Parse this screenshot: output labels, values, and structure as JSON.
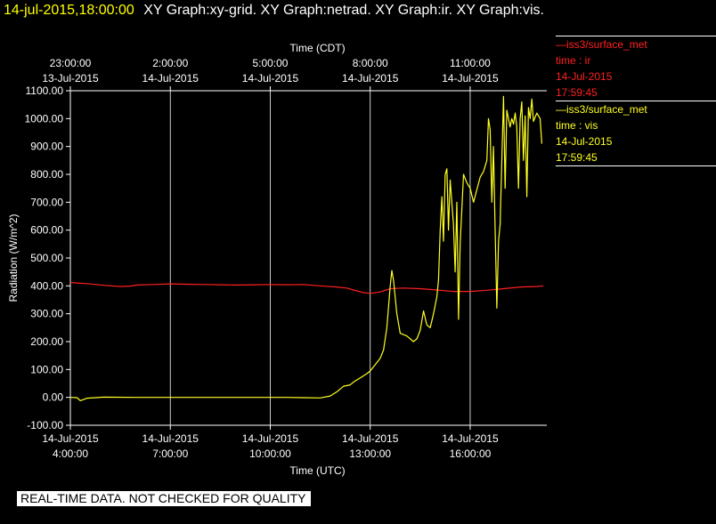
{
  "header": {
    "timestamp": "14-jul-2015,18:00:00",
    "titles": "XY Graph:xy-grid.  XY Graph:netrad.  XY Graph:ir.  XY Graph:vis."
  },
  "disclaimer": "REAL-TIME DATA. NOT CHECKED FOR QUALITY",
  "legend": [
    {
      "series": "iss3/surface_met",
      "var": "time : ir",
      "date": "14-Jul-2015",
      "time": "17:59:45",
      "color": "#ff2020"
    },
    {
      "series": "iss3/surface_met",
      "var": "time : vis",
      "date": "14-Jul-2015",
      "time": "17:59:45",
      "color": "#ffff20"
    }
  ],
  "chart_data": {
    "type": "line",
    "ylabel": "Radiation  (W/m^2)",
    "xlabel_bottom": "Time (UTC)",
    "xlabel_top": "Time (CDT)",
    "ylim": [
      -100,
      1100
    ],
    "xlim_utc_hours": [
      4.0,
      18.3
    ],
    "y_ticks": [
      "-100.00",
      "0.00",
      "100.00",
      "200.00",
      "300.00",
      "400.00",
      "500.00",
      "600.00",
      "700.00",
      "800.00",
      "900.00",
      "1000.00",
      "1100.00"
    ],
    "x_ticks_bottom": [
      {
        "date": "14-Jul-2015",
        "time": "4:00:00",
        "utc": 4
      },
      {
        "date": "14-Jul-2015",
        "time": "7:00:00",
        "utc": 7
      },
      {
        "date": "14-Jul-2015",
        "time": "10:00:00",
        "utc": 10
      },
      {
        "date": "14-Jul-2015",
        "time": "13:00:00",
        "utc": 13
      },
      {
        "date": "14-Jul-2015",
        "time": "16:00:00",
        "utc": 16
      }
    ],
    "x_ticks_top": [
      {
        "time": "23:00:00",
        "date": "13-Jul-2015",
        "utc": 4
      },
      {
        "time": "2:00:00",
        "date": "14-Jul-2015",
        "utc": 7
      },
      {
        "time": "5:00:00",
        "date": "14-Jul-2015",
        "utc": 10
      },
      {
        "time": "8:00:00",
        "date": "14-Jul-2015",
        "utc": 13
      },
      {
        "time": "11:00:00",
        "date": "14-Jul-2015",
        "utc": 16
      }
    ],
    "grid": true,
    "series": [
      {
        "name": "time : ir",
        "color": "#ff2020",
        "points": [
          [
            4.0,
            412
          ],
          [
            4.5,
            408
          ],
          [
            5.0,
            402
          ],
          [
            5.5,
            398
          ],
          [
            5.8,
            399
          ],
          [
            6.0,
            403
          ],
          [
            6.5,
            405
          ],
          [
            7.0,
            407
          ],
          [
            7.5,
            406
          ],
          [
            8.0,
            405
          ],
          [
            8.5,
            404
          ],
          [
            9.0,
            403
          ],
          [
            9.5,
            404
          ],
          [
            10.0,
            405
          ],
          [
            10.5,
            404
          ],
          [
            11.0,
            405
          ],
          [
            11.5,
            400
          ],
          [
            12.0,
            396
          ],
          [
            12.3,
            392
          ],
          [
            12.6,
            382
          ],
          [
            12.8,
            376
          ],
          [
            13.0,
            373
          ],
          [
            13.3,
            378
          ],
          [
            13.6,
            390
          ],
          [
            14.0,
            392
          ],
          [
            14.5,
            390
          ],
          [
            15.0,
            385
          ],
          [
            15.5,
            380
          ],
          [
            16.0,
            380
          ],
          [
            16.5,
            384
          ],
          [
            17.0,
            390
          ],
          [
            17.5,
            396
          ],
          [
            18.0,
            398
          ],
          [
            18.2,
            400
          ]
        ]
      },
      {
        "name": "time : vis",
        "color": "#ffff20",
        "points": [
          [
            4.0,
            0
          ],
          [
            4.2,
            -1
          ],
          [
            4.3,
            -12
          ],
          [
            4.5,
            -3
          ],
          [
            5.0,
            1
          ],
          [
            6.0,
            0
          ],
          [
            7.0,
            0
          ],
          [
            8.0,
            0
          ],
          [
            9.0,
            0
          ],
          [
            10.0,
            0
          ],
          [
            10.5,
            0
          ],
          [
            11.0,
            -1
          ],
          [
            11.5,
            -2
          ],
          [
            11.8,
            5
          ],
          [
            12.0,
            20
          ],
          [
            12.2,
            40
          ],
          [
            12.4,
            45
          ],
          [
            12.5,
            55
          ],
          [
            12.7,
            70
          ],
          [
            12.9,
            85
          ],
          [
            13.0,
            95
          ],
          [
            13.1,
            110
          ],
          [
            13.3,
            140
          ],
          [
            13.4,
            170
          ],
          [
            13.5,
            250
          ],
          [
            13.6,
            400
          ],
          [
            13.65,
            455
          ],
          [
            13.7,
            420
          ],
          [
            13.8,
            300
          ],
          [
            13.9,
            230
          ],
          [
            14.1,
            220
          ],
          [
            14.3,
            200
          ],
          [
            14.4,
            210
          ],
          [
            14.5,
            240
          ],
          [
            14.6,
            310
          ],
          [
            14.7,
            260
          ],
          [
            14.8,
            250
          ],
          [
            14.9,
            300
          ],
          [
            15.0,
            360
          ],
          [
            15.05,
            420
          ],
          [
            15.1,
            600
          ],
          [
            15.15,
            720
          ],
          [
            15.2,
            560
          ],
          [
            15.25,
            800
          ],
          [
            15.3,
            820
          ],
          [
            15.35,
            600
          ],
          [
            15.4,
            780
          ],
          [
            15.5,
            620
          ],
          [
            15.55,
            450
          ],
          [
            15.6,
            700
          ],
          [
            15.65,
            280
          ],
          [
            15.7,
            550
          ],
          [
            15.8,
            800
          ],
          [
            15.9,
            770
          ],
          [
            16.0,
            750
          ],
          [
            16.1,
            700
          ],
          [
            16.3,
            790
          ],
          [
            16.4,
            810
          ],
          [
            16.5,
            850
          ],
          [
            16.55,
            1000
          ],
          [
            16.6,
            960
          ],
          [
            16.65,
            700
          ],
          [
            16.7,
            900
          ],
          [
            16.75,
            600
          ],
          [
            16.8,
            320
          ],
          [
            16.85,
            560
          ],
          [
            16.9,
            620
          ],
          [
            17.0,
            1080
          ],
          [
            17.05,
            750
          ],
          [
            17.1,
            1030
          ],
          [
            17.2,
            970
          ],
          [
            17.25,
            1000
          ],
          [
            17.3,
            980
          ],
          [
            17.35,
            1020
          ],
          [
            17.4,
            970
          ],
          [
            17.45,
            750
          ],
          [
            17.5,
            1000
          ],
          [
            17.55,
            1060
          ],
          [
            17.6,
            850
          ],
          [
            17.65,
            1010
          ],
          [
            17.7,
            720
          ],
          [
            17.75,
            1040
          ],
          [
            17.8,
            1000
          ],
          [
            17.85,
            1070
          ],
          [
            17.9,
            990
          ],
          [
            18.0,
            1020
          ],
          [
            18.1,
            1000
          ],
          [
            18.15,
            910
          ]
        ]
      }
    ]
  }
}
